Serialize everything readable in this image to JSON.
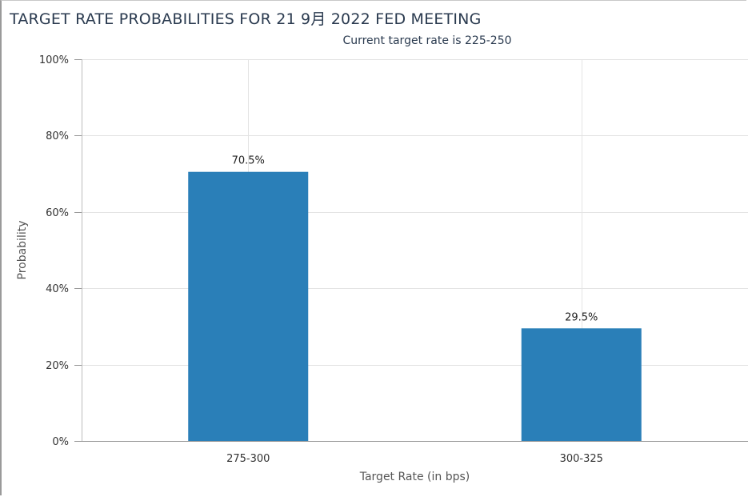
{
  "chart_data": {
    "type": "bar",
    "title": "TARGET RATE PROBABILITIES FOR 21 9月 2022 FED MEETING",
    "subtitle": "Current target rate is 225-250",
    "xlabel": "Target Rate (in bps)",
    "ylabel": "Probability",
    "categories": [
      "275-300",
      "300-325"
    ],
    "values": [
      70.5,
      29.5
    ],
    "data_labels": [
      "70.5%",
      "29.5%"
    ],
    "ylim": [
      0,
      100
    ],
    "yticks": [
      0,
      20,
      40,
      60,
      80,
      100
    ],
    "ytick_labels": [
      "0%",
      "20%",
      "40%",
      "60%",
      "80%",
      "100%"
    ],
    "bar_color": "#2a7fb8",
    "grid": true,
    "legend": "none"
  }
}
